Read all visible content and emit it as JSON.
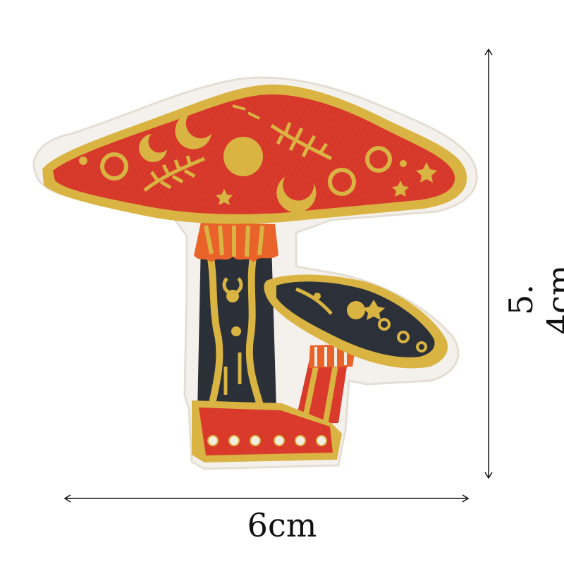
{
  "dimensions": {
    "width_label": "6cm",
    "height_label": "5. 4cm"
  },
  "colors": {
    "background": "#ffffff",
    "felt": "#f4f1ec",
    "cap_red": "#d93a2b",
    "gold": "#d9b443",
    "gold_dark": "#b88f22",
    "navy": "#2c3038",
    "orange": "#e8622a",
    "pearl": "#f2ede2"
  },
  "motifs": [
    "crescent-moon",
    "full-moon",
    "leaf-sprig",
    "star",
    "dot-ring",
    "pearl-bead"
  ]
}
